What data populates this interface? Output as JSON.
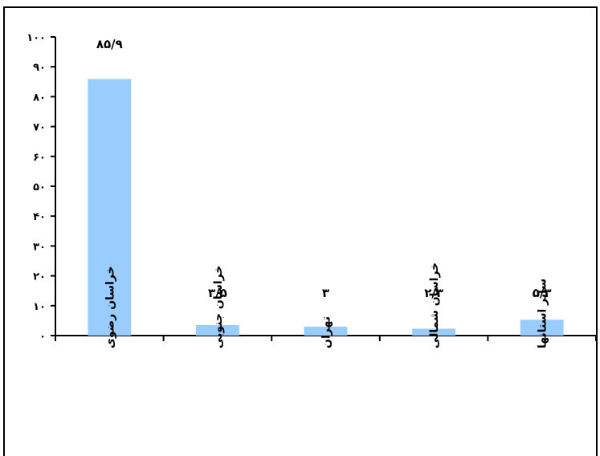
{
  "chart_data": {
    "type": "bar",
    "categories": [
      "خراسان رضوی",
      "خراسان جنوبی",
      "تهران",
      "خراسان شمالی",
      "سایر استانها"
    ],
    "values": [
      85.9,
      3.5,
      3,
      2.3,
      5.3
    ],
    "value_labels": [
      "۸۵/۹",
      "۳/۵",
      "۳",
      "۲/۳",
      "۵/۳"
    ],
    "yticks": [
      "۰",
      "۱۰",
      "۲۰",
      "۳۰",
      "۴۰",
      "۵۰",
      "۶۰",
      "۷۰",
      "۸۰",
      "۹۰",
      "۱۰۰"
    ],
    "ylim": [
      0,
      100
    ],
    "bar_color": "#99ccff",
    "title": "",
    "xlabel": "",
    "ylabel": "",
    "grid": false,
    "legend": "none"
  }
}
